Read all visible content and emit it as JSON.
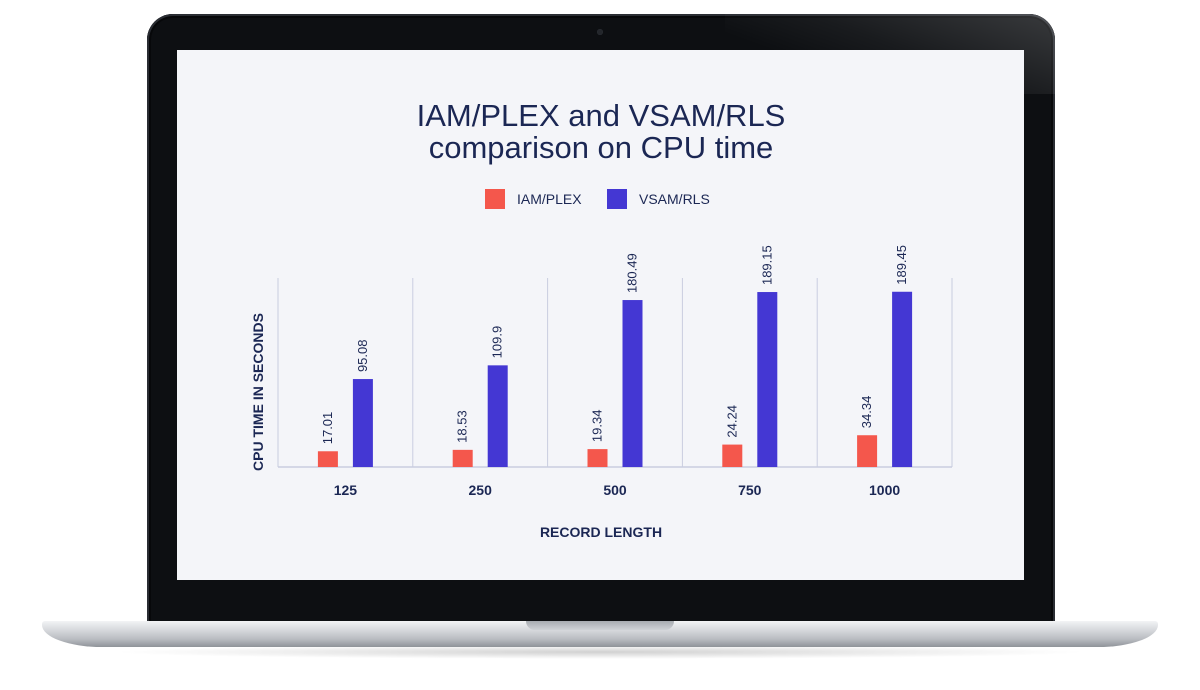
{
  "chart_data": {
    "type": "bar",
    "title": [
      "IAM/PLEX and VSAM/RLS",
      "comparison on CPU time"
    ],
    "xlabel": "RECORD LENGTH",
    "ylabel": "CPU TIME IN SECONDS",
    "categories": [
      "125",
      "250",
      "500",
      "750",
      "1000"
    ],
    "series": [
      {
        "name": "IAM/PLEX",
        "color": "#f4574c",
        "values": [
          17.01,
          18.53,
          19.34,
          24.24,
          34.34
        ]
      },
      {
        "name": "VSAM/RLS",
        "color": "#4437d3",
        "values": [
          95.08,
          109.9,
          180.49,
          189.15,
          189.45
        ]
      }
    ],
    "ylim": [
      0,
      200
    ],
    "legend_position": "top-center",
    "grid": "vertical category separators"
  }
}
